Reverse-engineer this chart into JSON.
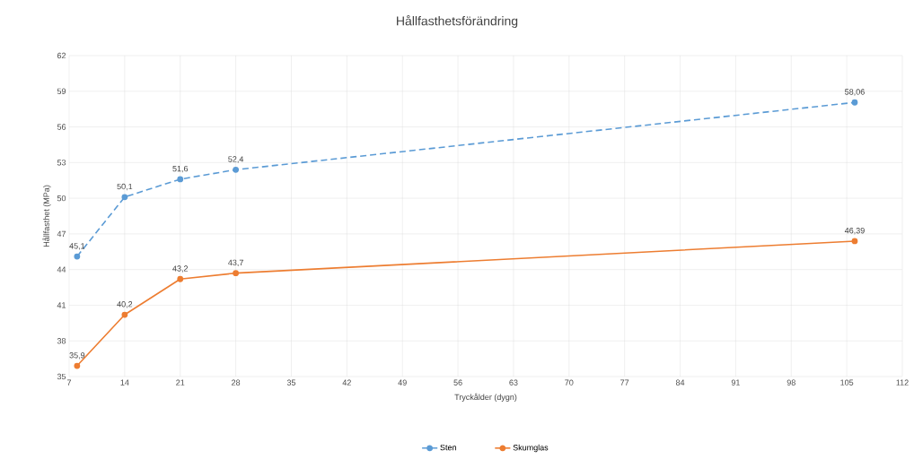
{
  "chart_data": {
    "type": "line",
    "title": "Hållfasthetsförändring",
    "xlabel": "Tryckålder (dygn)",
    "ylabel": "Hållfasthet (MPa)",
    "xlim": [
      7,
      112
    ],
    "xticks": [
      7,
      14,
      21,
      28,
      35,
      42,
      49,
      56,
      63,
      70,
      77,
      84,
      91,
      98,
      105,
      112
    ],
    "ylim": [
      35,
      62
    ],
    "yticks": [
      35,
      38,
      41,
      44,
      47,
      50,
      53,
      56,
      59,
      62
    ],
    "grid": true,
    "legend": "bottom",
    "marker": "circle",
    "series": [
      {
        "name": "Sten",
        "color": "#5b9bd5",
        "line_style": "dashed",
        "x": [
          8,
          14,
          21,
          28,
          106
        ],
        "values": [
          45.1,
          50.1,
          51.6,
          52.4,
          58.06
        ],
        "value_labels": [
          "45,1",
          "50,1",
          "51,6",
          "52,4",
          "58,06"
        ]
      },
      {
        "name": "Skumglas",
        "color": "#ed7d31",
        "line_style": "solid",
        "x": [
          8,
          14,
          21,
          28,
          106
        ],
        "values": [
          35.9,
          40.2,
          43.2,
          43.7,
          46.39
        ],
        "value_labels": [
          "35,9",
          "40,2",
          "43,2",
          "43,7",
          "46,39"
        ]
      }
    ]
  }
}
